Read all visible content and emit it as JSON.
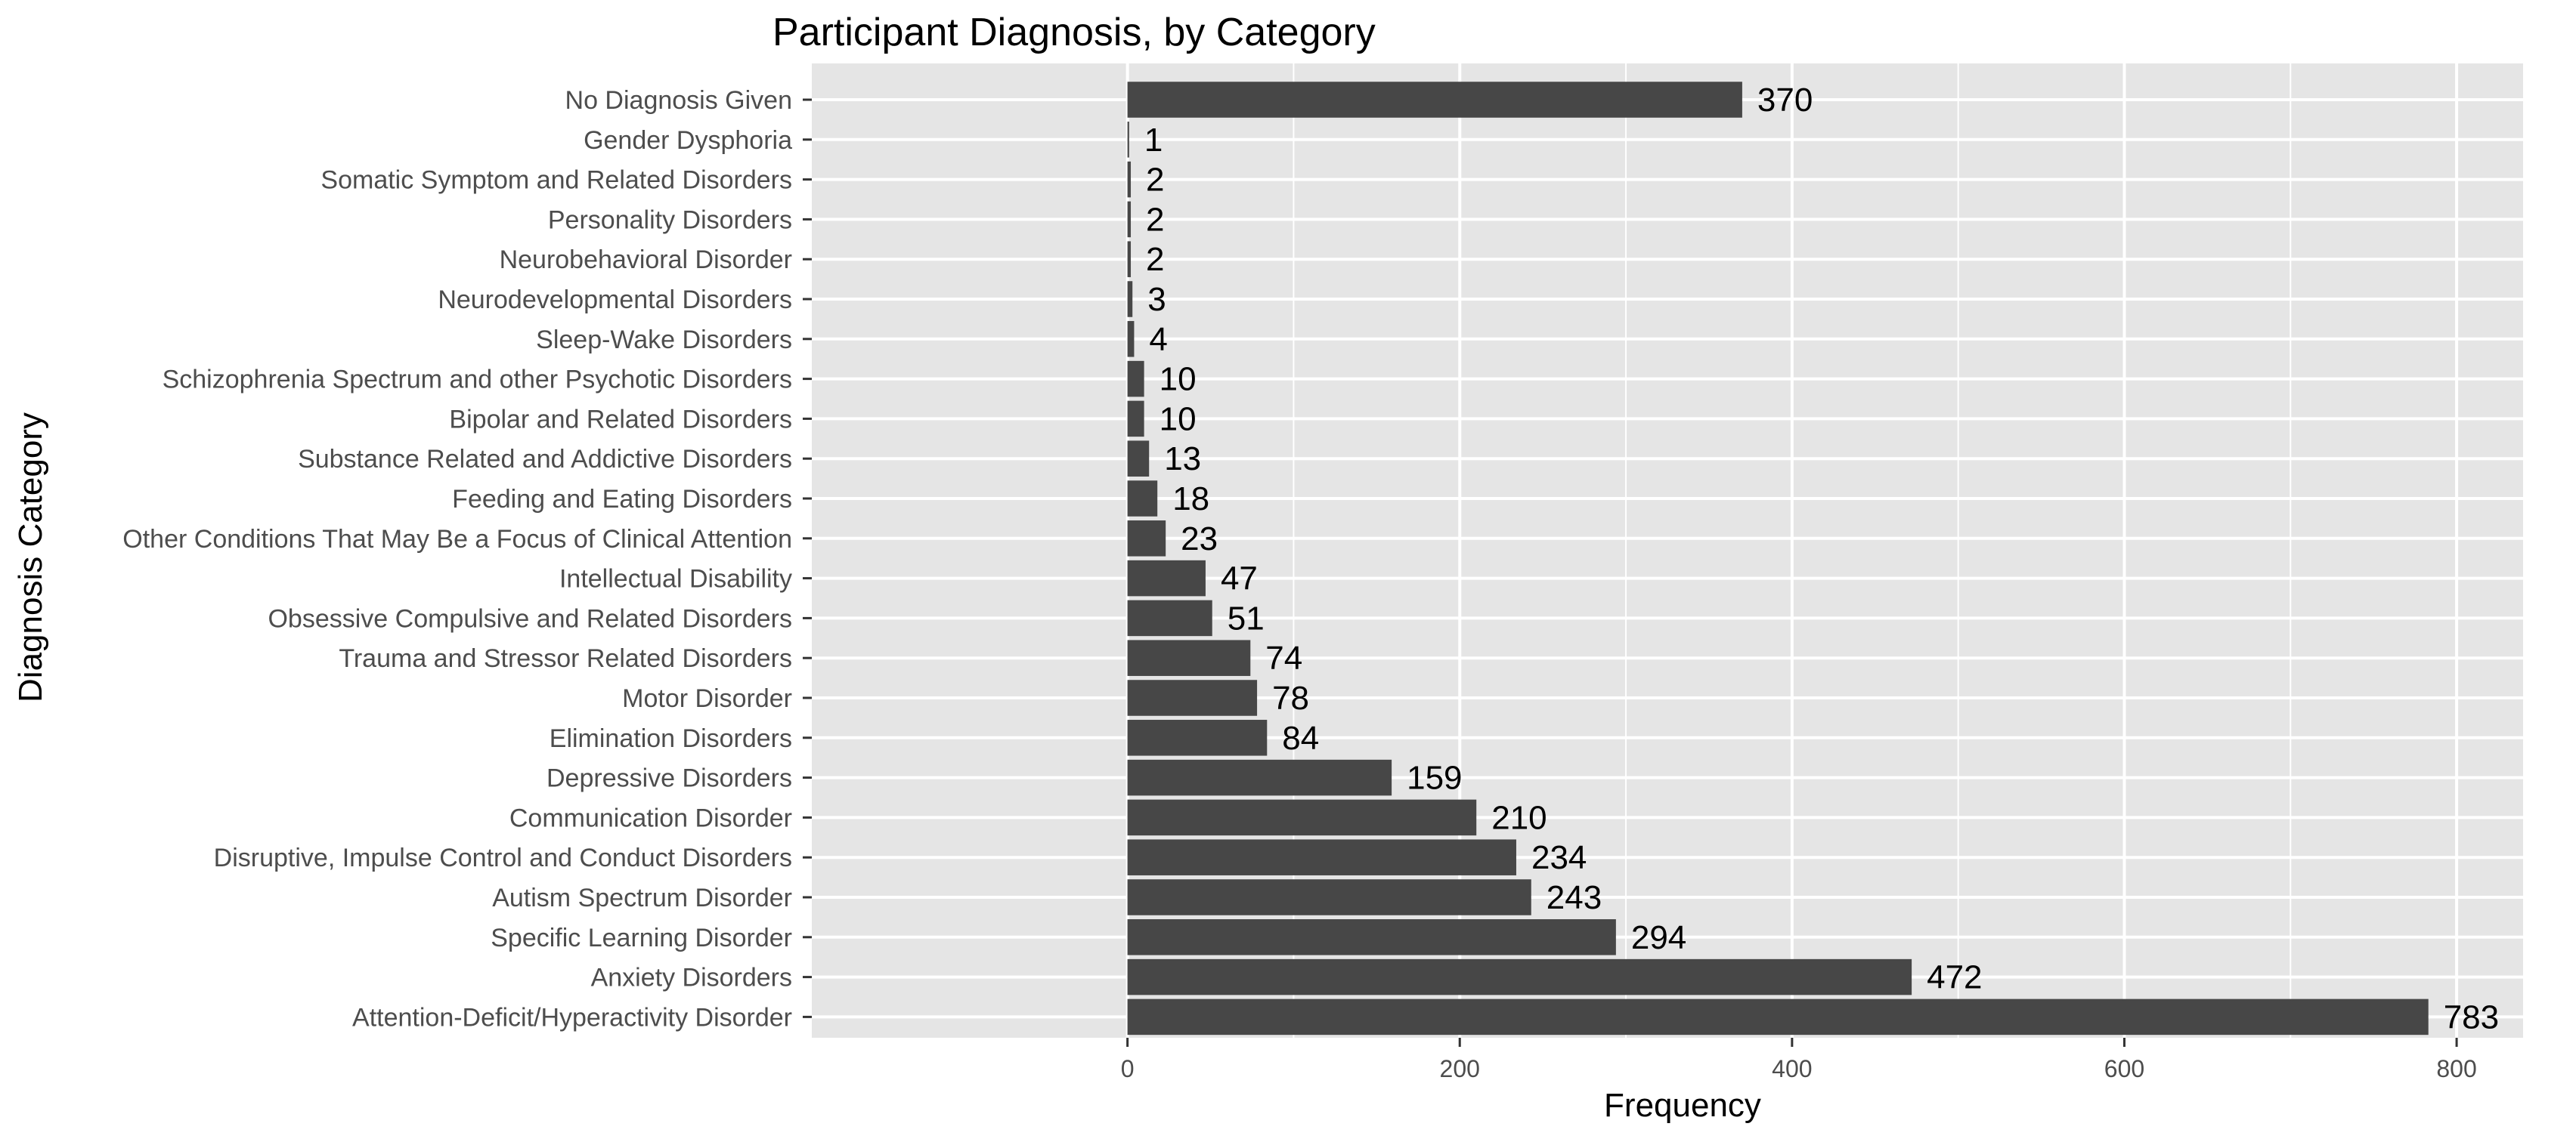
{
  "chart_data": {
    "type": "bar",
    "orientation": "horizontal",
    "title": "Participant Diagnosis, by Category",
    "xlabel": "Frequency",
    "ylabel": "Diagnosis Category",
    "xlim": [
      -190,
      840
    ],
    "x_ticks": [
      0,
      200,
      400,
      600,
      800
    ],
    "grid": true,
    "legend": "none",
    "colors": {
      "bar": "#474747",
      "panel": "#e5e5e5",
      "grid": "#ffffff"
    },
    "categories": [
      "No Diagnosis Given",
      "Gender Dysphoria",
      "Somatic Symptom and Related Disorders",
      "Personality Disorders",
      "Neurobehavioral Disorder",
      "Neurodevelopmental Disorders",
      "Sleep-Wake Disorders",
      "Schizophrenia Spectrum and other Psychotic Disorders",
      "Bipolar and Related Disorders",
      "Substance Related and Addictive Disorders",
      "Feeding and Eating Disorders",
      "Other Conditions That May Be a Focus of Clinical Attention",
      "Intellectual Disability",
      "Obsessive Compulsive and Related Disorders",
      "Trauma and Stressor Related Disorders",
      "Motor Disorder",
      "Elimination Disorders",
      "Depressive Disorders",
      "Communication Disorder",
      "Disruptive, Impulse Control and Conduct Disorders",
      "Autism Spectrum Disorder",
      "Specific Learning Disorder",
      "Anxiety Disorders",
      "Attention-Deficit/Hyperactivity Disorder"
    ],
    "values": [
      370,
      1,
      2,
      2,
      2,
      3,
      4,
      10,
      10,
      13,
      18,
      23,
      47,
      51,
      74,
      78,
      84,
      159,
      210,
      234,
      243,
      294,
      472,
      783
    ]
  }
}
